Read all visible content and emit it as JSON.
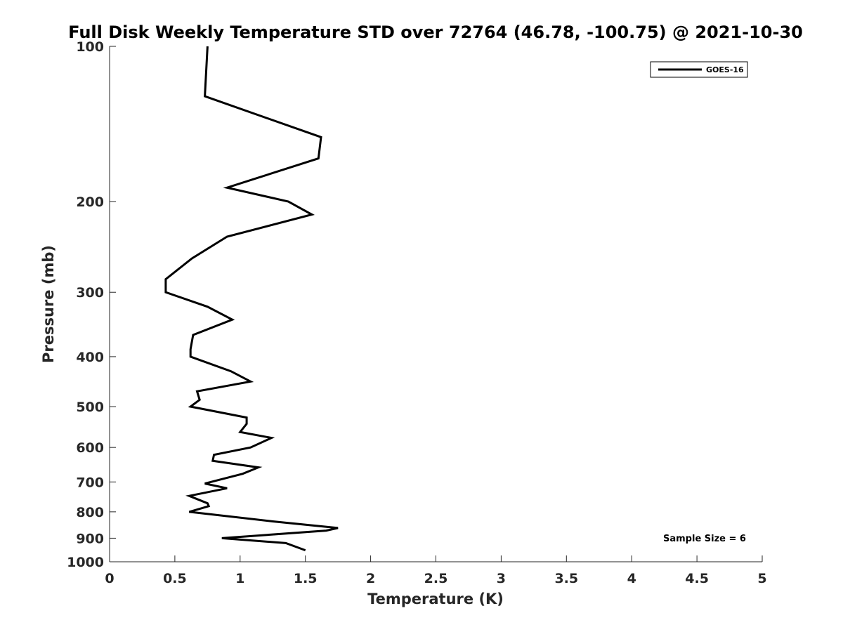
{
  "chart_data": {
    "type": "line",
    "title": "Full Disk Weekly Temperature STD over 72764 (46.78, -100.75) @ 2021-10-30",
    "xlabel": "Temperature (K)",
    "ylabel": "Pressure (mb)",
    "xlim": [
      0,
      5
    ],
    "ylim": [
      100,
      1000
    ],
    "yscale": "log",
    "y_reversed": true,
    "grid": false,
    "legend_position": "top-right",
    "x_ticks": [
      "0",
      "0.5",
      "1",
      "1.5",
      "2",
      "2.5",
      "3",
      "3.5",
      "4",
      "4.5",
      "5"
    ],
    "x_tick_values": [
      0,
      0.5,
      1,
      1.5,
      2,
      2.5,
      3,
      3.5,
      4,
      4.5,
      5
    ],
    "y_ticks": [
      "100",
      "200",
      "300",
      "400",
      "500",
      "600",
      "700",
      "800",
      "900",
      "1000"
    ],
    "y_tick_values": [
      100,
      200,
      300,
      400,
      500,
      600,
      700,
      800,
      900,
      1000
    ],
    "annotation": "Sample Size = 6",
    "series": [
      {
        "name": "GOES-16",
        "color": "#000000",
        "x": [
          0.75,
          0.73,
          1.62,
          1.6,
          0.9,
          1.37,
          1.55,
          0.9,
          0.63,
          0.43,
          0.43,
          0.75,
          0.94,
          0.64,
          0.62,
          0.62,
          0.93,
          1.08,
          0.67,
          0.69,
          0.62,
          1.05,
          1.05,
          1.0,
          1.24,
          1.08,
          0.8,
          0.79,
          1.14,
          1.02,
          0.73,
          0.9,
          0.61,
          0.75,
          0.76,
          0.61,
          1.25,
          1.75,
          1.66,
          0.86,
          1.35,
          1.5
        ],
        "y": [
          100,
          125,
          150,
          165,
          188,
          200,
          212,
          234,
          258,
          283,
          300,
          320,
          339,
          363,
          387,
          400,
          427,
          447,
          467,
          485,
          500,
          525,
          540,
          560,
          575,
          600,
          620,
          637,
          656,
          675,
          705,
          720,
          745,
          770,
          780,
          800,
          835,
          860,
          870,
          900,
          920,
          950
        ]
      }
    ]
  }
}
